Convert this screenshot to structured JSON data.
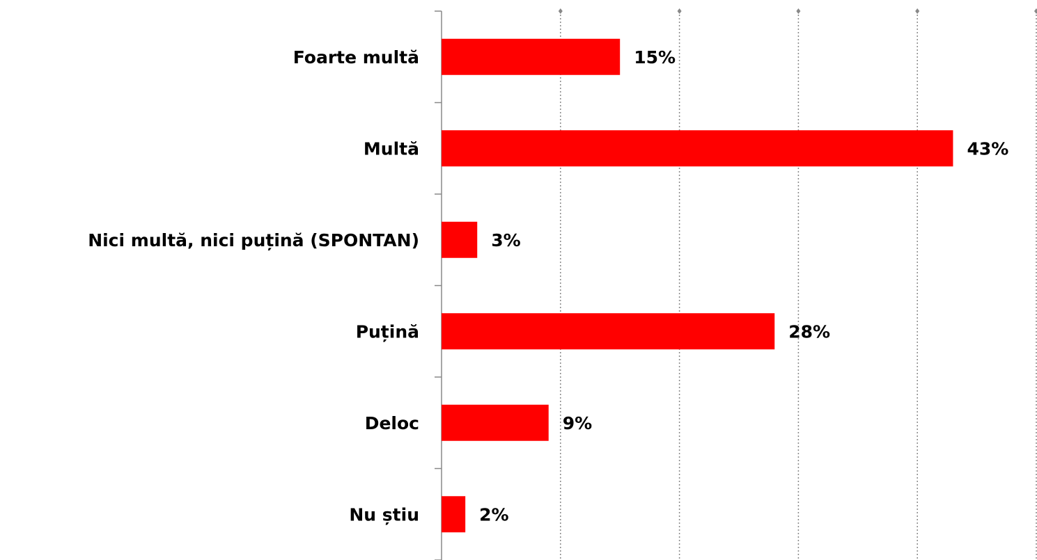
{
  "chart_data": {
    "type": "barh",
    "categories": [
      "Foarte multă",
      "Multă",
      "Nici multă, nici puțină (SPONTAN)",
      "Puțină",
      "Deloc",
      "Nu știu"
    ],
    "values": [
      15,
      43,
      3,
      28,
      9,
      2
    ],
    "value_labels": [
      "15%",
      "43%",
      "3%",
      "28%",
      "9%",
      "2%"
    ],
    "color": "#ff0000",
    "xlim": [
      0,
      50
    ],
    "xticks": [
      0,
      10,
      20,
      30,
      40,
      50
    ],
    "grid": true
  }
}
